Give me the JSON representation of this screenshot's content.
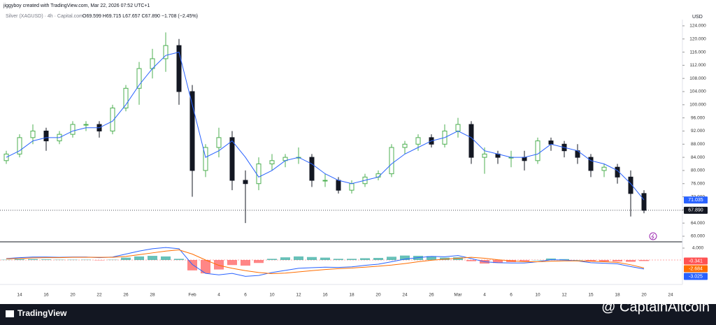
{
  "header": {
    "credit": "jiggyboy created with TradingView.com, Mar 22, 2026 07:52 UTC+1",
    "symbol": "Silver (XAGUSD) · 4h · Capital.com",
    "ohlc": "O69.599 H69.715 L67.657 C67.890 −1.708 (−2.45%)",
    "currency": "USD"
  },
  "footer": {
    "brand": "TradingView",
    "watermark": "@ CaptainAltcoin"
  },
  "chart_data": [
    {
      "type": "candlestick",
      "categories": [
        null,
        "14",
        null,
        "16",
        null,
        "20",
        null,
        "22",
        null,
        "26",
        null,
        "28",
        null,
        null,
        "Feb",
        null,
        "4",
        null,
        "6",
        null,
        "10",
        null,
        "12",
        null,
        "16",
        null,
        "18",
        null,
        "20",
        null,
        "24",
        null,
        "26",
        null,
        "Mar",
        null,
        "4",
        null,
        "6",
        null,
        "10",
        null,
        "12",
        null,
        "15",
        null,
        "18",
        null,
        "20",
        null,
        "24"
      ],
      "open": [
        83,
        85,
        90,
        92,
        89,
        91,
        94,
        94,
        92,
        99,
        105,
        111,
        114,
        118,
        104,
        80,
        87,
        90,
        77,
        76,
        82,
        83,
        84,
        84,
        77,
        77,
        74,
        76,
        78,
        79,
        87,
        88,
        90,
        88,
        92,
        94,
        84,
        85,
        84,
        84,
        83,
        89,
        88,
        86,
        84,
        80,
        81,
        78,
        73,
        null,
        null
      ],
      "high": [
        86,
        91,
        94,
        93,
        92,
        95,
        95,
        95,
        100,
        106,
        113,
        117,
        122,
        120,
        106,
        88,
        93,
        92,
        80,
        84,
        85,
        85,
        87,
        85,
        79,
        78,
        77,
        79,
        80,
        88,
        89,
        91,
        91,
        94,
        96,
        95,
        87,
        86,
        86,
        86,
        90,
        90,
        89,
        88,
        85,
        82,
        82,
        80,
        74,
        null,
        null
      ],
      "low": [
        82,
        84,
        88,
        86,
        88,
        90,
        92,
        90,
        91,
        98,
        100,
        108,
        110,
        100,
        72,
        78,
        84,
        74,
        64,
        74,
        80,
        81,
        82,
        75,
        75,
        73,
        73,
        75,
        77,
        78,
        85,
        86,
        87,
        87,
        90,
        82,
        79,
        82,
        81,
        80,
        82,
        86,
        84,
        82,
        78,
        78,
        76,
        66,
        67,
        null,
        null
      ],
      "close": [
        85,
        90,
        92,
        89,
        91,
        94,
        94,
        92,
        99,
        105,
        111,
        114,
        118,
        104,
        80,
        87,
        90,
        77,
        76,
        82,
        83,
        84,
        84,
        77,
        77,
        74,
        76,
        78,
        79,
        87,
        88,
        90,
        88,
        92,
        94,
        84,
        85,
        84,
        84,
        83,
        89,
        88,
        86,
        84,
        80,
        81,
        78,
        73,
        67.89,
        null,
        null
      ],
      "up_color": "#4caf50",
      "down_color": "#131722",
      "series": [
        {
          "color": "#2962ff",
          "values": [
            84,
            86,
            89,
            90,
            90,
            92,
            93,
            93,
            95,
            100,
            106,
            111,
            115,
            116,
            100,
            84,
            86,
            89,
            84,
            78,
            80,
            83,
            84,
            82,
            79,
            77,
            76,
            77,
            78,
            82,
            85,
            87,
            89,
            90,
            92,
            90,
            86,
            85,
            84,
            84,
            85,
            88,
            87,
            86,
            83,
            82,
            80,
            76,
            71.035,
            null,
            null
          ]
        }
      ],
      "ylim": [
        58.3,
        125.9
      ],
      "yticks": [
        {
          "value": 124,
          "label": "124.000"
        },
        {
          "value": 120,
          "label": "120.000"
        },
        {
          "value": 116,
          "label": "116.000"
        },
        {
          "value": 112,
          "label": "112.000"
        },
        {
          "value": 108,
          "label": "108.000"
        },
        {
          "value": 104,
          "label": "104.000"
        },
        {
          "value": 100,
          "label": "100.000"
        },
        {
          "value": 96,
          "label": "96.000"
        },
        {
          "value": 92,
          "label": "92.000"
        },
        {
          "value": 88,
          "label": "88.000"
        },
        {
          "value": 84,
          "label": "84.000"
        },
        {
          "value": 80,
          "label": "80.000"
        },
        {
          "value": 76,
          "label": "76.000"
        },
        {
          "value": 72,
          "label": "72.000"
        },
        {
          "value": 68,
          "label": "68.000"
        },
        {
          "value": 64,
          "label": "64.000"
        },
        {
          "value": 60,
          "label": "60.000"
        }
      ],
      "tags": [
        {
          "value": 71.035,
          "label": "71.035",
          "color": "#2962ff"
        },
        {
          "value": 67.89,
          "label": "67.890",
          "color": "#131722"
        }
      ]
    },
    {
      "type": "macd",
      "hist": [
        0.1,
        0.3,
        0.3,
        0.2,
        0.1,
        0.1,
        0.1,
        -0.1,
        0.1,
        0.8,
        1.2,
        1.4,
        1.2,
        0.4,
        -3.5,
        -4.5,
        -3.2,
        -1.7,
        -1.9,
        -1.0,
        0.4,
        0.9,
        1.2,
        1.0,
        0.8,
        0.4,
        0.4,
        0.6,
        0.7,
        1.1,
        1.5,
        1.4,
        1.3,
        0.8,
        0.9,
        -0.4,
        -1.2,
        -1.0,
        -0.7,
        -0.4,
        0,
        0.5,
        0.3,
        0,
        -0.5,
        -0.5,
        -0.5,
        -0.6,
        -0.341,
        null,
        null
      ],
      "hist_colors": [
        "#26a69a",
        "#ff5252"
      ],
      "series": [
        {
          "color": "#2962ff",
          "values": [
            0.5,
            0.8,
            1.0,
            1.0,
            0.9,
            1.0,
            1.0,
            0.8,
            1.0,
            2.0,
            3.0,
            3.8,
            4.2,
            3.8,
            -1.5,
            -4.5,
            -5.0,
            -4.5,
            -5.5,
            -5.2,
            -4.2,
            -3.5,
            -2.8,
            -2.6,
            -2.4,
            -2.5,
            -2.3,
            -1.8,
            -1.4,
            -0.6,
            0.3,
            0.8,
            1.2,
            1.1,
            1.5,
            0.5,
            -0.6,
            -0.9,
            -1.0,
            -1.0,
            -0.6,
            0.1,
            0.0,
            -0.3,
            -0.9,
            -1.1,
            -1.3,
            -2.2,
            -3.025,
            null,
            null
          ]
        },
        {
          "color": "#ff6d00",
          "values": [
            0.4,
            0.5,
            0.7,
            0.8,
            0.8,
            0.9,
            0.9,
            0.9,
            0.9,
            1.2,
            1.8,
            2.4,
            3.0,
            3.4,
            2.0,
            0,
            -1.8,
            -2.8,
            -3.6,
            -4.2,
            -4.6,
            -4.4,
            -4.0,
            -3.6,
            -3.2,
            -2.9,
            -2.7,
            -2.4,
            -2.1,
            -1.7,
            -1.2,
            -0.6,
            -0.1,
            0.3,
            0.6,
            0.9,
            0.6,
            0.1,
            -0.3,
            -0.6,
            -0.6,
            -0.4,
            -0.3,
            -0.3,
            -0.4,
            -0.6,
            -0.8,
            -1.6,
            -2.684,
            null,
            null
          ]
        }
      ],
      "ylim": [
        -6.59,
        5.18
      ],
      "yticks": [
        {
          "value": 4,
          "label": "4.000"
        }
      ],
      "tags": [
        {
          "value": -0.341,
          "label": "-0.341",
          "color": "#ff5252"
        },
        {
          "value": -2.684,
          "label": "-2.684",
          "color": "#ff6d00"
        },
        {
          "value": -3.025,
          "label": "-3.025",
          "color": "#2962ff"
        }
      ]
    }
  ]
}
